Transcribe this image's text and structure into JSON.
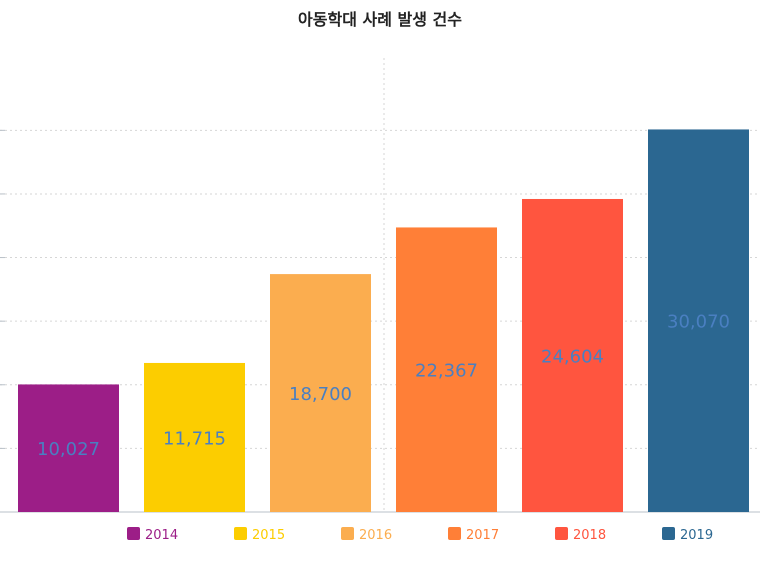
{
  "chart_data": {
    "type": "bar",
    "title": "아동학대 사례 발생 건수",
    "xlabel": "",
    "ylabel": "",
    "categories": [
      "2014",
      "2015",
      "2016",
      "2017",
      "2018",
      "2019"
    ],
    "values": [
      10027,
      11715,
      18700,
      22367,
      24604,
      30070
    ],
    "value_labels": [
      "10,027",
      "11,715",
      "18,700",
      "22,367",
      "24,604",
      "30,070"
    ],
    "colors": [
      "#9c1e87",
      "#fccd00",
      "#fbad4f",
      "#ff7f37",
      "#ff553f",
      "#2b6791"
    ],
    "label_color": "#4a7fc1",
    "ylim": [
      0,
      36000
    ],
    "grid": true,
    "legend_position": "bottom",
    "legend": [
      {
        "label": "2014",
        "color": "#9c1e87"
      },
      {
        "label": "2015",
        "color": "#fccd00"
      },
      {
        "label": "2016",
        "color": "#fbad4f"
      },
      {
        "label": "2017",
        "color": "#ff7f37"
      },
      {
        "label": "2018",
        "color": "#ff553f"
      },
      {
        "label": "2019",
        "color": "#2b6791"
      }
    ]
  }
}
